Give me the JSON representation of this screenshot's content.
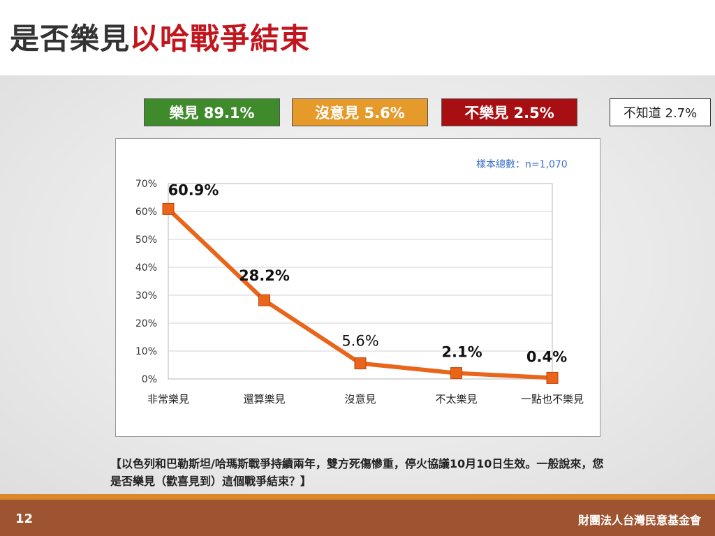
{
  "header": {
    "title_main": "是否樂見",
    "title_accent": "以哈戰爭結束"
  },
  "summary": [
    {
      "label": "樂見 89.1%",
      "color": "#3f8a2b"
    },
    {
      "label": "沒意見 5.6%",
      "color": "#e69a2a"
    },
    {
      "label": "不樂見 2.5%",
      "color": "#a80f12"
    },
    {
      "label": "不知道 2.7%",
      "color": "#ffffff"
    }
  ],
  "sample_note": "樣本總數：n=1,070",
  "question": "【以色列和巴勒斯坦/哈瑪斯戰爭持續兩年，雙方死傷慘重，停火協議10月10日生效。一般說來，您是否樂見（歡喜見到）這個戰爭結束？】",
  "footer": {
    "page_number": "12",
    "organization": "財團法人台灣民意基金會"
  },
  "chart_data": {
    "type": "line",
    "title": "",
    "xlabel": "",
    "ylabel": "",
    "categories": [
      "非常樂見",
      "還算樂見",
      "沒意見",
      "不太樂見",
      "一點也不樂見"
    ],
    "series": [
      {
        "values": [
          60.9,
          28.2,
          5.6,
          2.1,
          0.4
        ],
        "color": "#e8651a"
      }
    ],
    "data_labels": [
      "60.9%",
      "28.2%",
      "5.6%",
      "2.1%",
      "0.4%"
    ],
    "y_ticks": [
      "0%",
      "10%",
      "20%",
      "30%",
      "40%",
      "50%",
      "60%",
      "70%"
    ],
    "ylim": [
      0,
      70
    ],
    "grid": true,
    "legend": "none"
  }
}
